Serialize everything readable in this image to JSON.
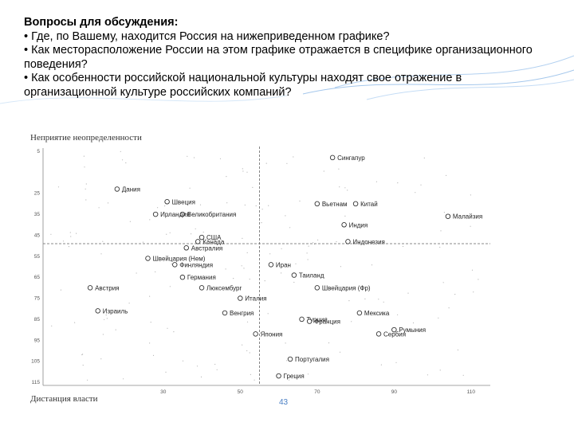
{
  "slide": {
    "heading": "Вопросы для обсуждения:",
    "questions": [
      "• Где, по Вашему, находится Россия на нижеприведенном графике?",
      "• Как месторасположение России на этом графике отражается в специфике организационного поведения?",
      "• Как особенности российской национальной культуры находят свое отражение в организационной культуре российских компаний?"
    ],
    "page_number": "43",
    "accent_color": "#4a90d9"
  },
  "chart_data": {
    "type": "scatter",
    "title": "",
    "xlabel": "Дистанция власти",
    "ylabel": "Неприятие неопределенности",
    "xlim": [
      0,
      115
    ],
    "ylim": [
      115,
      5
    ],
    "y_inverted": true,
    "x_tick_labels": [
      "30",
      "50",
      "70",
      "90",
      "110"
    ],
    "y_tick_labels": [
      "5",
      "25",
      "35",
      "45",
      "55",
      "65",
      "75",
      "85",
      "95",
      "105",
      "115"
    ],
    "guide_lines": {
      "vertical_x": 55,
      "horizontal_y": 49
    },
    "points": [
      {
        "name": "Дания",
        "x": 18,
        "y": 23
      },
      {
        "name": "Сингапур",
        "x": 74,
        "y": 8
      },
      {
        "name": "Швеция",
        "x": 31,
        "y": 29
      },
      {
        "name": "Вьетнам",
        "x": 70,
        "y": 30
      },
      {
        "name": "Китай",
        "x": 80,
        "y": 30
      },
      {
        "name": "Малайзия",
        "x": 104,
        "y": 36
      },
      {
        "name": "Великобритания",
        "x": 35,
        "y": 35
      },
      {
        "name": "Ирландия",
        "x": 28,
        "y": 35
      },
      {
        "name": "Индия",
        "x": 77,
        "y": 40
      },
      {
        "name": "США",
        "x": 40,
        "y": 46
      },
      {
        "name": "Индонезия",
        "x": 78,
        "y": 48
      },
      {
        "name": "Канада",
        "x": 39,
        "y": 48
      },
      {
        "name": "Швейцария (Нем)",
        "x": 26,
        "y": 56
      },
      {
        "name": "Австралия",
        "x": 36,
        "y": 51
      },
      {
        "name": "Иран",
        "x": 58,
        "y": 59
      },
      {
        "name": "Финляндия",
        "x": 33,
        "y": 59
      },
      {
        "name": "Таиланд",
        "x": 64,
        "y": 64
      },
      {
        "name": "Германия",
        "x": 35,
        "y": 65
      },
      {
        "name": "Австрия",
        "x": 11,
        "y": 70
      },
      {
        "name": "Люксембург",
        "x": 40,
        "y": 70
      },
      {
        "name": "Швейцария (Фр)",
        "x": 70,
        "y": 70
      },
      {
        "name": "Италия",
        "x": 50,
        "y": 75
      },
      {
        "name": "Турция",
        "x": 66,
        "y": 85
      },
      {
        "name": "Израиль",
        "x": 13,
        "y": 81
      },
      {
        "name": "Венгрия",
        "x": 46,
        "y": 82
      },
      {
        "name": "Франция",
        "x": 68,
        "y": 86
      },
      {
        "name": "Мексика",
        "x": 81,
        "y": 82
      },
      {
        "name": "Япония",
        "x": 54,
        "y": 92
      },
      {
        "name": "Румыния",
        "x": 90,
        "y": 90
      },
      {
        "name": "Сербия",
        "x": 86,
        "y": 92
      },
      {
        "name": "Португалия",
        "x": 63,
        "y": 104
      },
      {
        "name": "Греция",
        "x": 60,
        "y": 112
      }
    ]
  }
}
